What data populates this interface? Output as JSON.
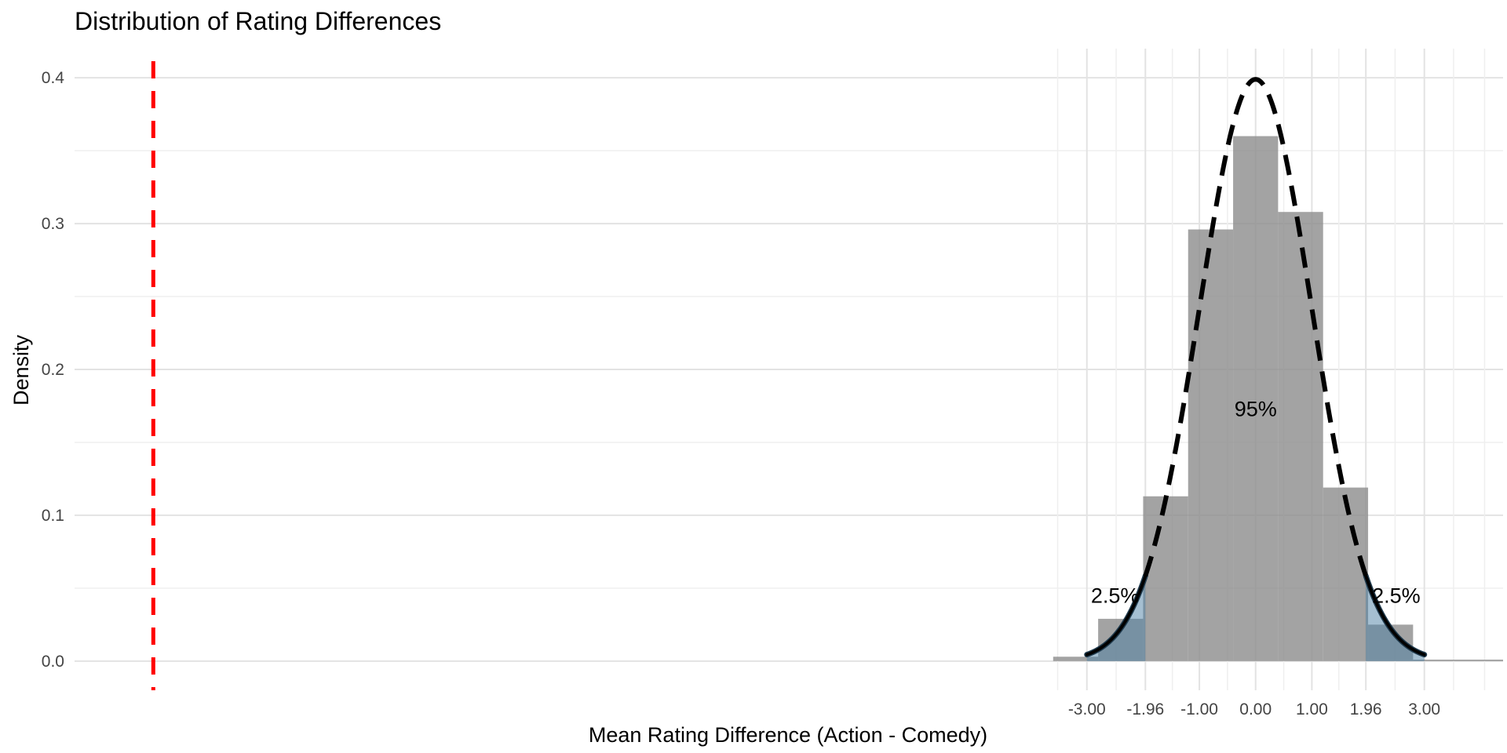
{
  "chart_data": {
    "type": "bar",
    "title": "Distribution of Rating Differences",
    "xlabel": "Mean Rating Difference (Action - Comedy)",
    "ylabel": "Density",
    "xlim": [
      -21,
      4.4
    ],
    "ylim": [
      -0.02,
      0.42
    ],
    "x_ticks": [
      -3,
      -1.96,
      -1,
      0,
      1,
      1.96,
      3
    ],
    "x_tick_labels": [
      "-3.00",
      "-1.96",
      "-1.00",
      "0.00",
      "1.00",
      "1.96",
      "3.00"
    ],
    "y_ticks": [
      0,
      0.1,
      0.2,
      0.3,
      0.4
    ],
    "y_tick_labels": [
      "0.0",
      "0.1",
      "0.2",
      "0.3",
      "0.4"
    ],
    "histogram": {
      "bin_width": 0.8,
      "bins": [
        {
          "x0": -3.6,
          "x1": -2.8,
          "density": 0.003
        },
        {
          "x0": -2.8,
          "x1": -2.0,
          "density": 0.029
        },
        {
          "x0": -2.0,
          "x1": -1.2,
          "density": 0.113
        },
        {
          "x0": -1.2,
          "x1": -0.4,
          "density": 0.296
        },
        {
          "x0": -0.4,
          "x1": 0.4,
          "density": 0.36
        },
        {
          "x0": 0.4,
          "x1": 1.2,
          "density": 0.308
        },
        {
          "x0": 1.2,
          "x1": 2.0,
          "density": 0.119
        },
        {
          "x0": 2.0,
          "x1": 2.8,
          "density": 0.025
        },
        {
          "x0": 2.8,
          "x1": 4.4,
          "density": 0.001
        }
      ]
    },
    "normal_curve": {
      "mean": 0,
      "sd": 1,
      "range": [
        -3,
        3
      ]
    },
    "critical_values": [
      -1.96,
      1.96
    ],
    "observed_line": {
      "x": -19.6
    },
    "annotations": [
      {
        "text": "2.5%",
        "x": -2.5,
        "y": 0.04
      },
      {
        "text": "95%",
        "x": 0,
        "y": 0.168
      },
      {
        "text": "2.5%",
        "x": 2.5,
        "y": 0.04
      }
    ],
    "colors": {
      "bars": "#8c8c8c",
      "tail_fill": "#4b7fa3",
      "tail_outline": "#1f3a4d",
      "curve": "#000000",
      "observed_line": "#ff0000",
      "grid_major": "#e3e3e3",
      "grid_minor": "#efefef"
    }
  }
}
